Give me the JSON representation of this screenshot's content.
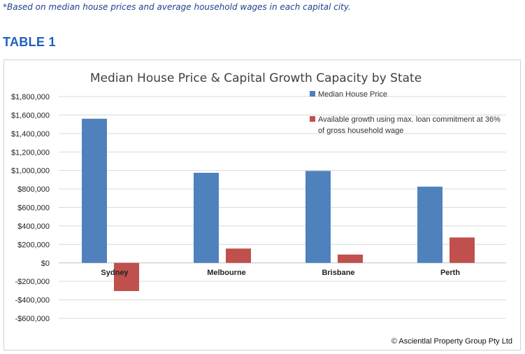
{
  "page": {
    "footnote": "*Based on median house prices and average household wages in each capital city.",
    "heading": "TABLE 1"
  },
  "chart_data": {
    "type": "bar",
    "title": "Median House Price & Capital Growth Capacity by State",
    "categories": [
      "Sydney",
      "Melbourne",
      "Brisbane",
      "Perth"
    ],
    "series": [
      {
        "name": "Median House Price",
        "color": "#4f81bd",
        "values": [
          1560000,
          975000,
          995000,
          825000
        ]
      },
      {
        "name": "Available growth using max. loan commitment at 36% of gross household wage",
        "legend_lines": [
          "Available growth using max. loan commitment at 36%",
          "of gross household wage"
        ],
        "color": "#c0504d",
        "values": [
          -305000,
          155000,
          90000,
          275000
        ]
      }
    ],
    "ylim": [
      -600000,
      1800000
    ],
    "yticks": [
      1800000,
      1600000,
      1400000,
      1200000,
      1000000,
      800000,
      600000,
      400000,
      200000,
      0,
      -200000,
      -400000,
      -600000
    ],
    "ytick_labels": [
      "$1,800,000",
      "$1,600,000",
      "$1,400,000",
      "$1,200,000",
      "$1,000,000",
      "$800,000",
      "$600,000",
      "$400,000",
      "$200,000",
      "$0",
      "-$200,000",
      "-$400,000",
      "-$600,000"
    ],
    "xlabel": "",
    "ylabel": "",
    "grid": true,
    "legend_position": "top-right",
    "copyright": "© Ascientlal Property Group Pty Ltd"
  }
}
